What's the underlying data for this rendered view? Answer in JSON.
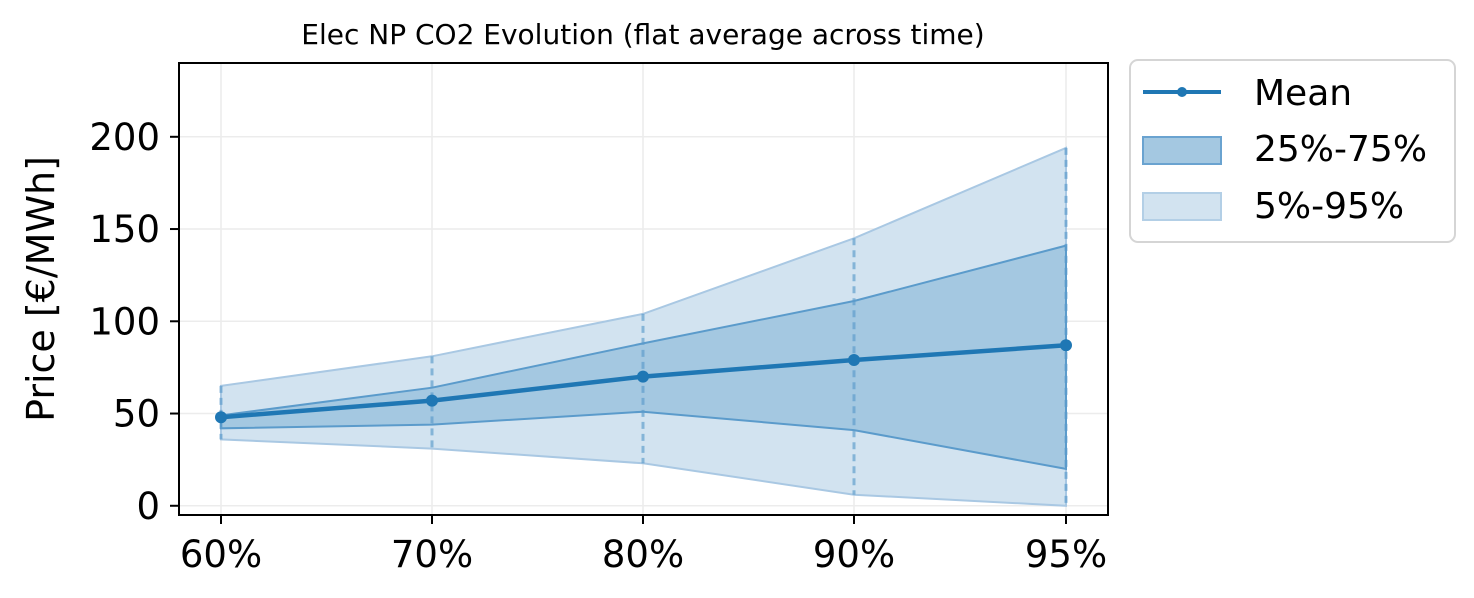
{
  "chart_data": {
    "type": "line",
    "title": "Elec NP CO2 Evolution (flat average across time)",
    "xlabel": "",
    "ylabel": "Price [€/MWh]",
    "categories": [
      "60%",
      "70%",
      "80%",
      "90%",
      "95%"
    ],
    "ylim": [
      -5,
      240
    ],
    "yticks": [
      0,
      50,
      100,
      150,
      200
    ],
    "grid": true,
    "legend_position": "outside-top-right",
    "series": [
      {
        "name": "Mean",
        "kind": "line",
        "values": [
          48,
          57,
          70,
          79,
          87
        ]
      },
      {
        "name": "25%-75%",
        "kind": "band",
        "lower": [
          42,
          44,
          51,
          41,
          20
        ],
        "upper": [
          49,
          64,
          88,
          111,
          141
        ]
      },
      {
        "name": "5%-95%",
        "kind": "band",
        "lower": [
          36,
          31,
          23,
          6,
          0
        ],
        "upper": [
          65,
          81,
          104,
          145,
          194
        ]
      }
    ],
    "colors": {
      "line": "#1f77b4",
      "band_inner": "#a4c8e1",
      "band_outer": "#d2e3f0",
      "inner_edge": "#5b9bcb",
      "outer_edge": "#a9c8e3",
      "grid": "#ececec"
    }
  }
}
